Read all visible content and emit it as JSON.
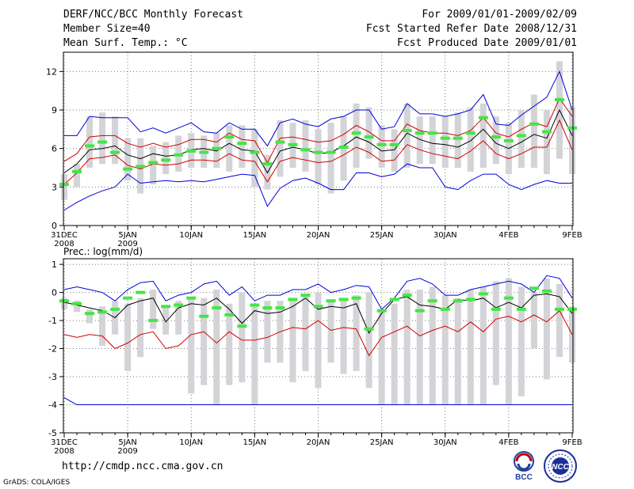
{
  "header": {
    "title": "DERF/NCC/BCC Monthly Forecast",
    "member_size": "Member Size=40",
    "variable": "Mean Surf. Temp.: °C",
    "period": "For 2009/01/01-2009/02/09",
    "started": "Fcst Started Refer Date 2008/12/31",
    "produced": "Fcst Produced Date 2009/01/01"
  },
  "footer": {
    "url": "http://cmdp.ncc.cma.gov.cn",
    "grads": "GrADS: COLA/IGES",
    "logo_bcc": "BCC",
    "logo_ncc": "NCC"
  },
  "colors": {
    "box": "#d3d3d8",
    "median": "#44e644",
    "max_min": "#0000dd",
    "spread": "#d00000",
    "mean": "#000000"
  },
  "chart_data": [
    {
      "type": "line",
      "title": "Mean Surf. Temp.: °C",
      "x_days": 40,
      "xticks": [
        {
          "day": 0,
          "label": "31DEC",
          "sub": "2008"
        },
        {
          "day": 5,
          "label": "5JAN",
          "sub": "2009"
        },
        {
          "day": 10,
          "label": "10JAN",
          "sub": ""
        },
        {
          "day": 15,
          "label": "15JAN",
          "sub": ""
        },
        {
          "day": 20,
          "label": "20JAN",
          "sub": ""
        },
        {
          "day": 25,
          "label": "25JAN",
          "sub": ""
        },
        {
          "day": 30,
          "label": "30JAN",
          "sub": ""
        },
        {
          "day": 35,
          "label": "4FEB",
          "sub": ""
        },
        {
          "day": 40,
          "label": "9FEB",
          "sub": ""
        }
      ],
      "ylim": [
        0,
        13.5
      ],
      "yticks": [
        0,
        3,
        6,
        9,
        12
      ],
      "box_low": [
        2.0,
        3.0,
        4.5,
        4.8,
        4.8,
        3.5,
        2.5,
        3.2,
        4.0,
        4.2,
        4.5,
        4.5,
        4.5,
        4.2,
        4.5,
        3.0,
        2.8,
        3.8,
        4.5,
        4.2,
        3.2,
        2.5,
        3.5,
        4.5,
        5.2,
        4.5,
        4.2,
        4.5,
        4.8,
        4.8,
        4.5,
        4.5,
        4.2,
        4.5,
        4.8,
        4.0,
        4.5,
        4.5,
        4.0,
        5.2,
        4.0
      ],
      "box_high": [
        4.0,
        4.8,
        8.5,
        8.8,
        8.5,
        6.8,
        6.8,
        6.2,
        6.5,
        7.0,
        7.2,
        7.0,
        7.2,
        7.8,
        7.8,
        7.5,
        5.5,
        8.2,
        8.0,
        8.2,
        7.5,
        8.0,
        8.5,
        9.5,
        9.2,
        7.8,
        7.5,
        9.5,
        8.5,
        8.5,
        8.5,
        8.8,
        9.2,
        9.5,
        8.5,
        8.0,
        9.0,
        10.2,
        9.0,
        12.8,
        9.2
      ],
      "median": [
        3.2,
        4.2,
        6.2,
        6.5,
        5.7,
        4.4,
        4.6,
        4.9,
        5.1,
        5.5,
        5.8,
        5.7,
        6.0,
        6.9,
        6.4,
        5.7,
        4.8,
        6.5,
        6.3,
        5.9,
        5.7,
        5.7,
        6.1,
        7.2,
        6.9,
        6.3,
        6.3,
        7.4,
        7.2,
        7.2,
        6.8,
        6.8,
        7.2,
        8.4,
        6.9,
        6.6,
        7.0,
        7.9,
        7.3,
        9.8,
        7.6
      ],
      "max": [
        7.0,
        7.0,
        8.5,
        8.4,
        8.4,
        8.4,
        7.3,
        7.6,
        7.2,
        7.6,
        8.0,
        7.3,
        7.2,
        8.0,
        7.5,
        7.5,
        6.2,
        8.0,
        8.3,
        7.9,
        7.7,
        8.3,
        8.5,
        9.0,
        9.0,
        7.5,
        7.7,
        9.5,
        8.7,
        8.7,
        8.5,
        8.7,
        9.0,
        10.2,
        7.9,
        7.8,
        8.6,
        9.3,
        10.0,
        12.0,
        9.0
      ],
      "spread_high": [
        5.0,
        5.6,
        6.9,
        7.0,
        7.0,
        6.4,
        6.1,
        6.4,
        6.1,
        6.3,
        6.7,
        6.7,
        6.5,
        7.2,
        6.7,
        6.6,
        4.9,
        6.8,
        6.9,
        6.7,
        6.5,
        6.6,
        7.1,
        7.8,
        7.3,
        6.6,
        6.6,
        7.9,
        7.4,
        7.2,
        7.2,
        7.0,
        7.4,
        8.4,
        7.2,
        6.9,
        7.5,
        8.0,
        7.7,
        9.9,
        8.5
      ],
      "mean": [
        4.1,
        4.8,
        5.9,
        6.0,
        6.2,
        5.5,
        5.2,
        5.6,
        5.4,
        5.5,
        5.9,
        6.0,
        5.8,
        6.4,
        5.9,
        5.8,
        4.1,
        5.8,
        6.1,
        5.9,
        5.6,
        5.7,
        6.2,
        6.9,
        6.5,
        5.8,
        5.9,
        7.2,
        6.7,
        6.4,
        6.3,
        6.1,
        6.6,
        7.5,
        6.4,
        6.0,
        6.5,
        7.1,
        6.8,
        9.0,
        7.0
      ],
      "spread_low": [
        3.2,
        4.1,
        5.2,
        5.3,
        5.5,
        4.7,
        4.4,
        4.8,
        4.7,
        4.8,
        5.1,
        5.1,
        5.0,
        5.6,
        5.1,
        5.0,
        3.4,
        5.0,
        5.3,
        5.1,
        4.9,
        5.0,
        5.5,
        6.1,
        5.7,
        5.0,
        5.1,
        6.3,
        5.9,
        5.6,
        5.4,
        5.2,
        5.8,
        6.6,
        5.6,
        5.2,
        5.6,
        6.1,
        6.1,
        8.2,
        5.9
      ],
      "min": [
        1.2,
        1.8,
        2.3,
        2.7,
        3.0,
        4.0,
        3.3,
        3.4,
        3.5,
        3.4,
        3.5,
        3.4,
        3.6,
        3.8,
        4.0,
        3.9,
        1.5,
        2.9,
        3.5,
        3.7,
        3.3,
        2.8,
        2.8,
        4.1,
        4.1,
        3.8,
        4.0,
        4.8,
        4.5,
        4.5,
        3.0,
        2.8,
        3.5,
        4.0,
        4.0,
        3.2,
        2.8,
        3.2,
        3.5,
        3.3,
        3.3
      ]
    },
    {
      "type": "line",
      "title": "Prec.: log(mm/d)",
      "x_days": 40,
      "xticks": [
        {
          "day": 0,
          "label": "31DEC",
          "sub": "2008"
        },
        {
          "day": 5,
          "label": "5JAN",
          "sub": "2009"
        },
        {
          "day": 10,
          "label": "10JAN",
          "sub": ""
        },
        {
          "day": 15,
          "label": "15JAN",
          "sub": ""
        },
        {
          "day": 20,
          "label": "20JAN",
          "sub": ""
        },
        {
          "day": 25,
          "label": "25JAN",
          "sub": ""
        },
        {
          "day": 30,
          "label": "30JAN",
          "sub": ""
        },
        {
          "day": 35,
          "label": "4FEB",
          "sub": ""
        },
        {
          "day": 40,
          "label": "9FEB",
          "sub": ""
        }
      ],
      "ylim": [
        -5,
        1.2
      ],
      "yticks": [
        -5,
        -4,
        -3,
        -2,
        -1,
        0,
        1
      ],
      "box_low": [
        -0.6,
        -0.7,
        -1.1,
        -1.9,
        -1.5,
        -2.8,
        -2.3,
        -1.3,
        -1.5,
        -1.5,
        -3.6,
        -3.3,
        -4.0,
        -3.3,
        -3.2,
        -4.0,
        -2.5,
        -2.5,
        -3.2,
        -2.8,
        -3.4,
        -2.5,
        -2.9,
        -2.8,
        -3.4,
        -4.0,
        -4.0,
        -4.0,
        -4.0,
        -4.0,
        -4.0,
        -4.0,
        -4.0,
        -4.0,
        -3.3,
        -4.0,
        -3.7,
        -2.0,
        -3.1,
        -2.3,
        -2.5
      ],
      "box_high": [
        -0.2,
        -0.3,
        -0.6,
        -0.5,
        -0.3,
        -0.4,
        -0.2,
        0.1,
        -0.5,
        -0.3,
        -0.2,
        -0.2,
        0.1,
        -0.4,
        0.0,
        -0.5,
        -0.3,
        -0.3,
        -0.2,
        -0.1,
        0.0,
        -0.3,
        -0.2,
        -0.1,
        0.0,
        -0.6,
        -0.4,
        0.1,
        0.1,
        0.2,
        -0.1,
        -0.2,
        0.1,
        0.2,
        0.4,
        0.5,
        0.2,
        0.0,
        0.5,
        0.3,
        -0.5
      ],
      "median": [
        -0.3,
        -0.4,
        -0.75,
        -0.7,
        -0.6,
        -0.2,
        0.0,
        -1.0,
        -0.5,
        -0.45,
        -0.2,
        -0.85,
        -0.55,
        -0.8,
        -1.2,
        -0.45,
        -0.55,
        -0.55,
        -0.25,
        -0.1,
        -0.5,
        -0.3,
        -0.25,
        -0.2,
        -1.3,
        -0.65,
        -0.25,
        -0.1,
        -0.65,
        -0.3,
        -0.6,
        -0.3,
        -0.25,
        -0.05,
        -0.6,
        -0.2,
        -0.6,
        0.15,
        0.05,
        -0.6,
        -0.6
      ],
      "max": [
        0.1,
        0.2,
        0.1,
        0.0,
        -0.3,
        0.1,
        0.35,
        0.4,
        -0.3,
        -0.1,
        0.0,
        0.3,
        0.4,
        -0.1,
        0.2,
        -0.3,
        -0.1,
        -0.1,
        0.1,
        0.1,
        0.3,
        0.0,
        0.1,
        0.25,
        0.2,
        -0.6,
        -0.2,
        0.4,
        0.5,
        0.3,
        -0.1,
        -0.1,
        0.1,
        0.2,
        0.3,
        0.4,
        0.3,
        0.0,
        0.6,
        0.5,
        -0.2
      ],
      "mean": [
        -0.35,
        -0.45,
        -0.55,
        -0.65,
        -0.9,
        -0.45,
        -0.3,
        -0.2,
        -1.05,
        -0.55,
        -0.4,
        -0.45,
        -0.2,
        -0.6,
        -1.1,
        -0.65,
        -0.75,
        -0.7,
        -0.5,
        -0.2,
        -0.6,
        -0.5,
        -0.55,
        -0.4,
        -1.45,
        -0.75,
        -0.25,
        -0.15,
        -0.45,
        -0.5,
        -0.6,
        -0.25,
        -0.3,
        -0.2,
        -0.55,
        -0.35,
        -0.55,
        -0.1,
        -0.05,
        -0.15,
        -0.75
      ],
      "spread_low": [
        -1.5,
        -1.6,
        -1.5,
        -1.55,
        -2.0,
        -1.8,
        -1.5,
        -1.4,
        -2.0,
        -1.9,
        -1.5,
        -1.4,
        -1.8,
        -1.4,
        -1.7,
        -1.7,
        -1.6,
        -1.4,
        -1.25,
        -1.3,
        -1.0,
        -1.35,
        -1.25,
        -1.3,
        -2.25,
        -1.6,
        -1.4,
        -1.2,
        -1.55,
        -1.35,
        -1.2,
        -1.4,
        -1.05,
        -1.4,
        -0.95,
        -0.85,
        -1.05,
        -0.8,
        -1.05,
        -0.65,
        -1.5
      ],
      "min": [
        -3.75,
        -4.0,
        -4.0,
        -4.0,
        -4.0,
        -4.0,
        -4.0,
        -4.0,
        -4.0,
        -4.0,
        -4.0,
        -4.0,
        -4.0,
        -4.0,
        -4.0,
        -4.0,
        -4.0,
        -4.0,
        -4.0,
        -4.0,
        -4.0,
        -4.0,
        -4.0,
        -4.0,
        -4.0,
        -4.0,
        -4.0,
        -4.0,
        -4.0,
        -4.0,
        -4.0,
        -4.0,
        -4.0,
        -4.0,
        -4.0,
        -4.0,
        -4.0,
        -4.0,
        -4.0,
        -4.0,
        -4.0
      ]
    }
  ]
}
